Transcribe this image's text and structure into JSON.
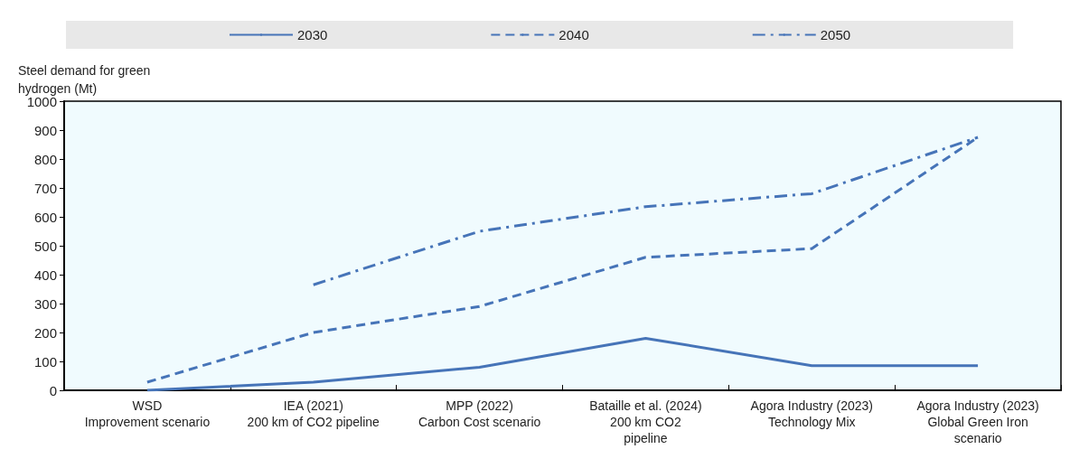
{
  "chart_data": {
    "type": "line",
    "ylabel": "Steel demand for green\nhydrogen (Mt)",
    "categories": [
      "WSD\nImprovement scenario",
      "IEA (2021)\n200 km of CO2 pipeline",
      "MPP (2022)\nCarbon Cost scenario",
      "Bataille et al. (2024)\n200 km CO2\npipeline",
      "Agora Industry (2023)\nTechnology Mix",
      "Agora Industry (2023)\nGlobal Green Iron\nscenario"
    ],
    "series": [
      {
        "name": "2030",
        "color": "#4674b8",
        "line_style": "solid",
        "values": [
          0,
          28,
          80,
          180,
          85,
          85
        ]
      },
      {
        "name": "2040",
        "color": "#4674b8",
        "line_style": "dashed",
        "values": [
          28,
          200,
          290,
          460,
          490,
          875
        ]
      },
      {
        "name": "2050",
        "color": "#4674b8",
        "line_style": "dashdot",
        "values": [
          null,
          365,
          550,
          635,
          680,
          875
        ]
      }
    ],
    "ylim": [
      0,
      1000
    ],
    "yticks": [
      0,
      100,
      200,
      300,
      400,
      500,
      600,
      700,
      800,
      900,
      1000
    ],
    "grid": false,
    "legend": "top",
    "marker": "none"
  }
}
